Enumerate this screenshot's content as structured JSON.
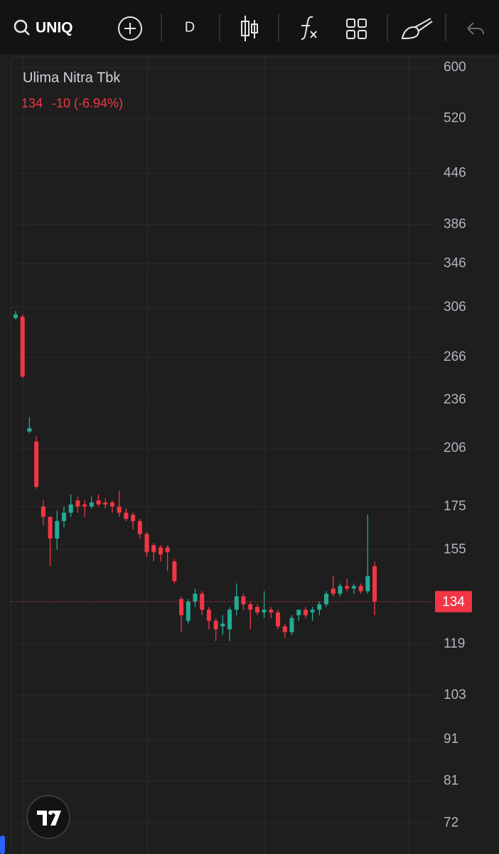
{
  "toolbar": {
    "symbol": "UNIQ",
    "interval": "D"
  },
  "header": {
    "name": "Ulima Nitra Tbk",
    "price": "134",
    "change": "-10 (-6.94%)"
  },
  "chart_data": {
    "type": "candlestick",
    "categories": [
      null,
      null,
      null,
      null,
      null,
      null,
      null,
      null,
      null,
      null,
      null,
      null,
      null,
      null,
      null,
      null,
      null,
      null,
      null,
      null,
      null,
      null,
      null,
      null,
      null,
      null,
      null,
      null,
      null,
      null,
      null,
      null,
      null,
      null,
      null,
      null,
      null,
      null,
      null,
      null,
      null,
      null,
      null,
      null,
      null,
      null,
      null,
      null,
      null,
      null,
      null,
      null,
      null
    ],
    "open": [
      297,
      298,
      216,
      210,
      175,
      170,
      160,
      168,
      172,
      178,
      176,
      175,
      178,
      177,
      177,
      175,
      172,
      171,
      168,
      162,
      157,
      156,
      156,
      150,
      135,
      127,
      134,
      137,
      131,
      127,
      125,
      124,
      131,
      136,
      133,
      132,
      130,
      131,
      130,
      125,
      123,
      129,
      131,
      130,
      131,
      133,
      139,
      137,
      140,
      139,
      140,
      138,
      148
    ],
    "high": [
      303,
      300,
      225,
      213,
      178,
      170,
      173,
      175,
      181,
      180,
      178,
      180,
      181,
      179,
      178,
      183,
      174,
      172,
      169,
      163,
      158,
      157,
      157,
      151,
      136,
      135,
      139,
      138,
      132,
      128,
      129,
      132,
      141,
      137,
      134,
      133,
      138,
      132,
      131,
      126,
      129,
      131,
      132,
      132,
      134,
      138,
      144,
      141,
      143,
      141,
      141,
      171,
      150
    ],
    "low": [
      296,
      251,
      215,
      184,
      166,
      148,
      155,
      165,
      170,
      172,
      170,
      174,
      175,
      174,
      172,
      170,
      168,
      164,
      160,
      152,
      150,
      150,
      146,
      141,
      123,
      126,
      132,
      129,
      124,
      120,
      122,
      120,
      129,
      131,
      124,
      129,
      128,
      128,
      124,
      121,
      122,
      127,
      128,
      127,
      129,
      132,
      136,
      136,
      138,
      137,
      137,
      137,
      129
    ],
    "close": [
      300,
      252,
      218,
      185,
      170,
      160,
      168,
      172,
      176,
      175,
      175,
      177,
      176,
      176,
      175,
      172,
      169,
      168,
      162,
      154,
      154,
      153,
      154,
      142,
      129,
      134,
      137,
      131,
      127,
      124,
      126,
      131,
      136,
      133,
      131,
      130,
      131,
      130,
      125,
      123,
      128,
      131,
      129,
      131,
      133,
      137,
      137,
      140,
      139,
      140,
      138,
      144,
      134
    ],
    "up_color": "#22ab94",
    "down_color": "#f23645",
    "last_price": 134,
    "log_scale": true,
    "grid": true,
    "ylim": [
      66,
      618
    ],
    "yticks": [
      600,
      520,
      446,
      386,
      346,
      306,
      266,
      236,
      206,
      175,
      155,
      119,
      103,
      91,
      81,
      72
    ]
  }
}
